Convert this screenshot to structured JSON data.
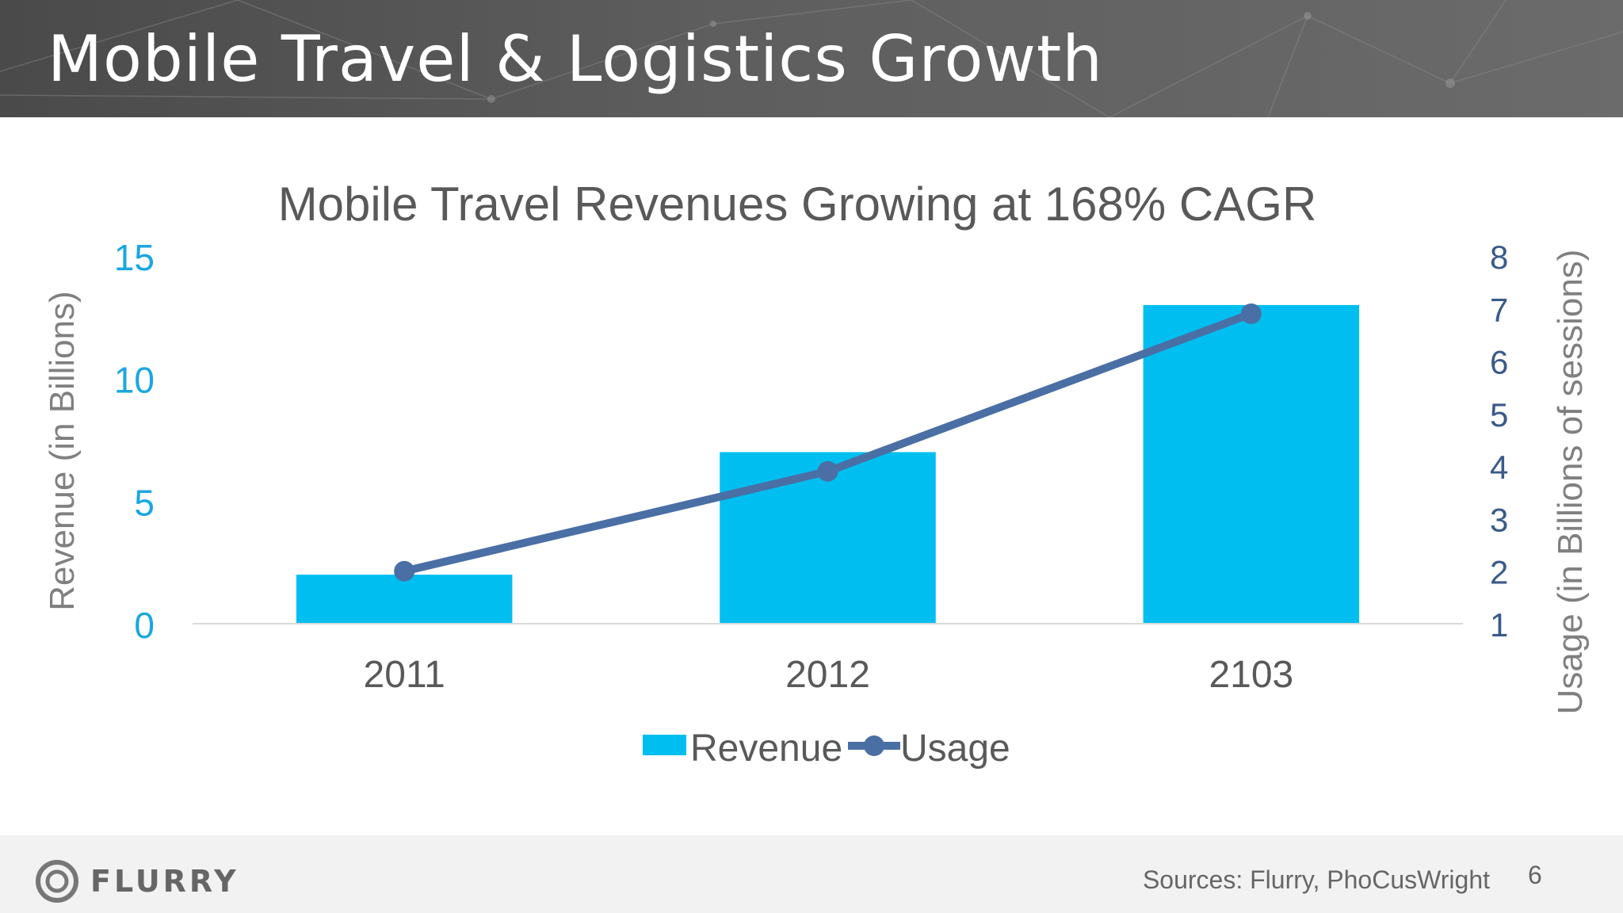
{
  "slide": {
    "title": "Mobile Travel & Logistics Growth",
    "page_number": "6"
  },
  "footer": {
    "logo_text": "FLURRY",
    "sources": "Sources: Flurry, PhoCusWright"
  },
  "colors": {
    "revenue_bar": "#00bff0",
    "usage_line": "#4a6fa5",
    "left_axis_text": "#1aa7e0",
    "right_axis_text": "#3a5a8a",
    "axis_title_text": "#808080",
    "title_text": "#595959"
  },
  "chart_data": {
    "type": "bar",
    "title": "Mobile Travel Revenues Growing at 168% CAGR",
    "categories": [
      "2011",
      "2012",
      "2103"
    ],
    "series": [
      {
        "name": "Revenue",
        "type": "bar",
        "axis": "left",
        "values": [
          2,
          7,
          13
        ]
      },
      {
        "name": "Usage",
        "type": "line",
        "axis": "right",
        "values": [
          2,
          3.9,
          6.9
        ]
      }
    ],
    "ylabel": "Revenue (in Billions)",
    "ylim": [
      0,
      15
    ],
    "yticks": [
      "0",
      "5",
      "10",
      "15"
    ],
    "y2label": "Usage (in Billions of sessions)",
    "y2lim": [
      1,
      8
    ],
    "y2ticks": [
      "1",
      "2",
      "3",
      "4",
      "5",
      "6",
      "7",
      "8"
    ],
    "legend": "bottom",
    "grid": false
  }
}
